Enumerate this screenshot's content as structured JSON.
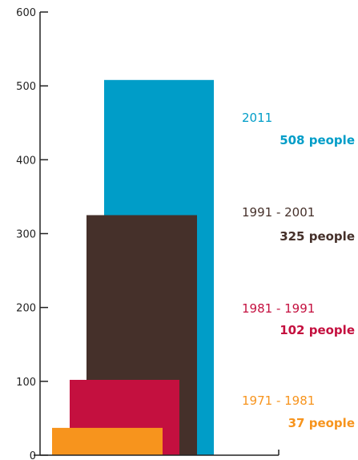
{
  "chart_data": {
    "type": "bar",
    "title": "",
    "xlabel": "",
    "ylabel": "",
    "ylim": [
      0,
      600
    ],
    "yticks": [
      0,
      100,
      200,
      300,
      400,
      500,
      600
    ],
    "grid": false,
    "legend": "none",
    "series": [
      {
        "name": "2011",
        "value": 508,
        "label": "508 people",
        "color": "#009dc8"
      },
      {
        "name": "1991 - 2001",
        "value": 325,
        "label": "325 people",
        "color": "#45302a"
      },
      {
        "name": "1981 - 1991",
        "value": 102,
        "label": "102 people",
        "color": "#c4103f"
      },
      {
        "name": "1971 - 1981",
        "value": 37,
        "label": "37 people",
        "color": "#f7941d"
      }
    ]
  }
}
